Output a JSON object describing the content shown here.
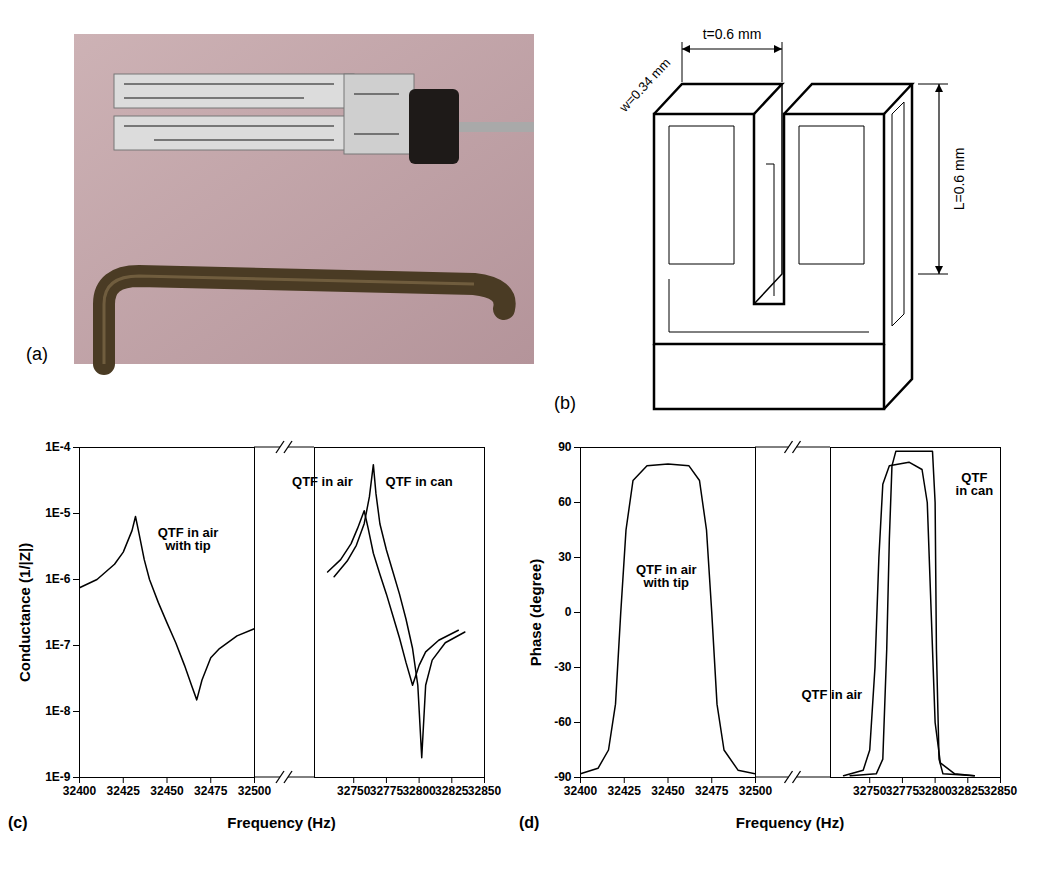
{
  "photo": {
    "panel": "(a)"
  },
  "diagram": {
    "panel": "(b)",
    "gap_label": "t=0.6 mm",
    "width_label": "w=0.34 mm",
    "length_label": "L=0.6 mm"
  },
  "chart_data": [
    {
      "type": "line",
      "panel": "(c)",
      "xlabel": "Frequency (Hz)",
      "ylabel": "Conductance (1/|Z|)",
      "log": "y",
      "xlim": [
        [
          32400,
          32500
        ],
        [
          32720,
          32850
        ]
      ],
      "xticks": [
        [
          32400,
          32425,
          32450,
          32475,
          32500
        ],
        [
          32750,
          32775,
          32800,
          32825,
          32850
        ]
      ],
      "ylim": [
        1e-09,
        0.0001
      ],
      "yticks": [
        {
          "value": 1e-09,
          "label": "1E-9"
        },
        {
          "value": 1e-08,
          "label": "1E-8"
        },
        {
          "value": 1e-07,
          "label": "1E-7"
        },
        {
          "value": 1e-06,
          "label": "1E-6"
        },
        {
          "value": 1e-05,
          "label": "1E-5"
        },
        {
          "value": 0.0001,
          "label": "1E-4"
        }
      ],
      "series": [
        {
          "name": "QTF in air\nwith tip",
          "color": "#000000",
          "label": {
            "x": 32462,
            "y": 4e-06
          },
          "x": [
            32400,
            32410,
            32420,
            32425,
            32430,
            32432,
            32434,
            32437,
            32440,
            32445,
            32450,
            32455,
            32460,
            32464,
            32467,
            32470,
            32475,
            32480,
            32490,
            32500
          ],
          "values": [
            7.5e-07,
            1e-06,
            1.7e-06,
            2.6e-06,
            5.5e-06,
            9e-06,
            5e-06,
            2e-06,
            1e-06,
            4.5e-07,
            2.2e-07,
            1.1e-07,
            5e-08,
            2.5e-08,
            1.5e-08,
            3e-08,
            6.5e-08,
            9e-08,
            1.4e-07,
            1.8e-07
          ]
        },
        {
          "name": "QTF in air",
          "color": "#000000",
          "label": {
            "x": 32726,
            "y": 3e-05
          },
          "x": [
            32730,
            32740,
            32748,
            32753,
            32758,
            32761,
            32765,
            32770,
            32775,
            32780,
            32785,
            32790,
            32795,
            32800,
            32805,
            32815,
            32830
          ],
          "values": [
            1.3e-06,
            2e-06,
            3.5e-06,
            6e-06,
            1.1e-05,
            6e-06,
            2.5e-06,
            1.2e-06,
            6e-07,
            2.8e-07,
            1.3e-07,
            5.5e-08,
            2.5e-08,
            5e-08,
            8e-08,
            1.2e-07,
            1.7e-07
          ]
        },
        {
          "name": "QTF in can",
          "color": "#000000",
          "label": {
            "x": 32800,
            "y": 3e-05
          },
          "x": [
            32735,
            32745,
            32752,
            32758,
            32762,
            32765,
            32767,
            32770,
            32775,
            32780,
            32785,
            32790,
            32795,
            32799,
            32802,
            32805,
            32810,
            32820,
            32835
          ],
          "values": [
            1.1e-06,
            1.9e-06,
            3.3e-06,
            7e-06,
            1.8e-05,
            5.5e-05,
            2e-05,
            7e-06,
            2.8e-06,
            1.3e-06,
            6e-07,
            2.5e-07,
            9e-08,
            2.5e-08,
            2e-09,
            2.5e-08,
            6e-08,
            1.1e-07,
            1.6e-07
          ]
        }
      ]
    },
    {
      "type": "line",
      "panel": "(d)",
      "xlabel": "Frequency (Hz)",
      "ylabel": "Phase (degree)",
      "xlim": [
        [
          32400,
          32500
        ],
        [
          32720,
          32850
        ]
      ],
      "xticks": [
        [
          32400,
          32425,
          32450,
          32475,
          32500
        ],
        [
          32750,
          32775,
          32800,
          32825,
          32850
        ]
      ],
      "ylim": [
        -90,
        90
      ],
      "yticks": [
        -90,
        -60,
        -30,
        0,
        30,
        60,
        90
      ],
      "series": [
        {
          "name": "QTF in air\nwith tip",
          "color": "#000000",
          "label": {
            "x": 32449,
            "y": 20
          },
          "x": [
            32400,
            32410,
            32416,
            32420,
            32423,
            32426,
            32430,
            32438,
            32450,
            32462,
            32468,
            32472,
            32475,
            32478,
            32482,
            32490,
            32500
          ],
          "values": [
            -88,
            -85,
            -75,
            -50,
            0,
            45,
            72,
            80,
            81,
            80,
            72,
            45,
            0,
            -50,
            -75,
            -86,
            -88
          ]
        },
        {
          "name": "QTF in air",
          "color": "#000000",
          "label": {
            "x": 32721,
            "y": -45
          },
          "x": [
            32730,
            32745,
            32750,
            32754,
            32757,
            32760,
            32765,
            32780,
            32790,
            32794,
            32797,
            32800,
            32804,
            32815,
            32830
          ],
          "values": [
            -89,
            -86,
            -75,
            -30,
            30,
            70,
            80,
            82,
            78,
            60,
            0,
            -60,
            -82,
            -88,
            -89
          ]
        },
        {
          "name": "QTF\nin can",
          "color": "#000000",
          "label": {
            "x": 32830,
            "y": 70
          },
          "x": [
            32735,
            32755,
            32760,
            32763,
            32765,
            32767,
            32770,
            32790,
            32798,
            32800,
            32801,
            32803,
            32806,
            32830
          ],
          "values": [
            -89,
            -88,
            -80,
            -20,
            40,
            80,
            88,
            88,
            88,
            60,
            -20,
            -80,
            -88,
            -89
          ]
        }
      ]
    }
  ]
}
